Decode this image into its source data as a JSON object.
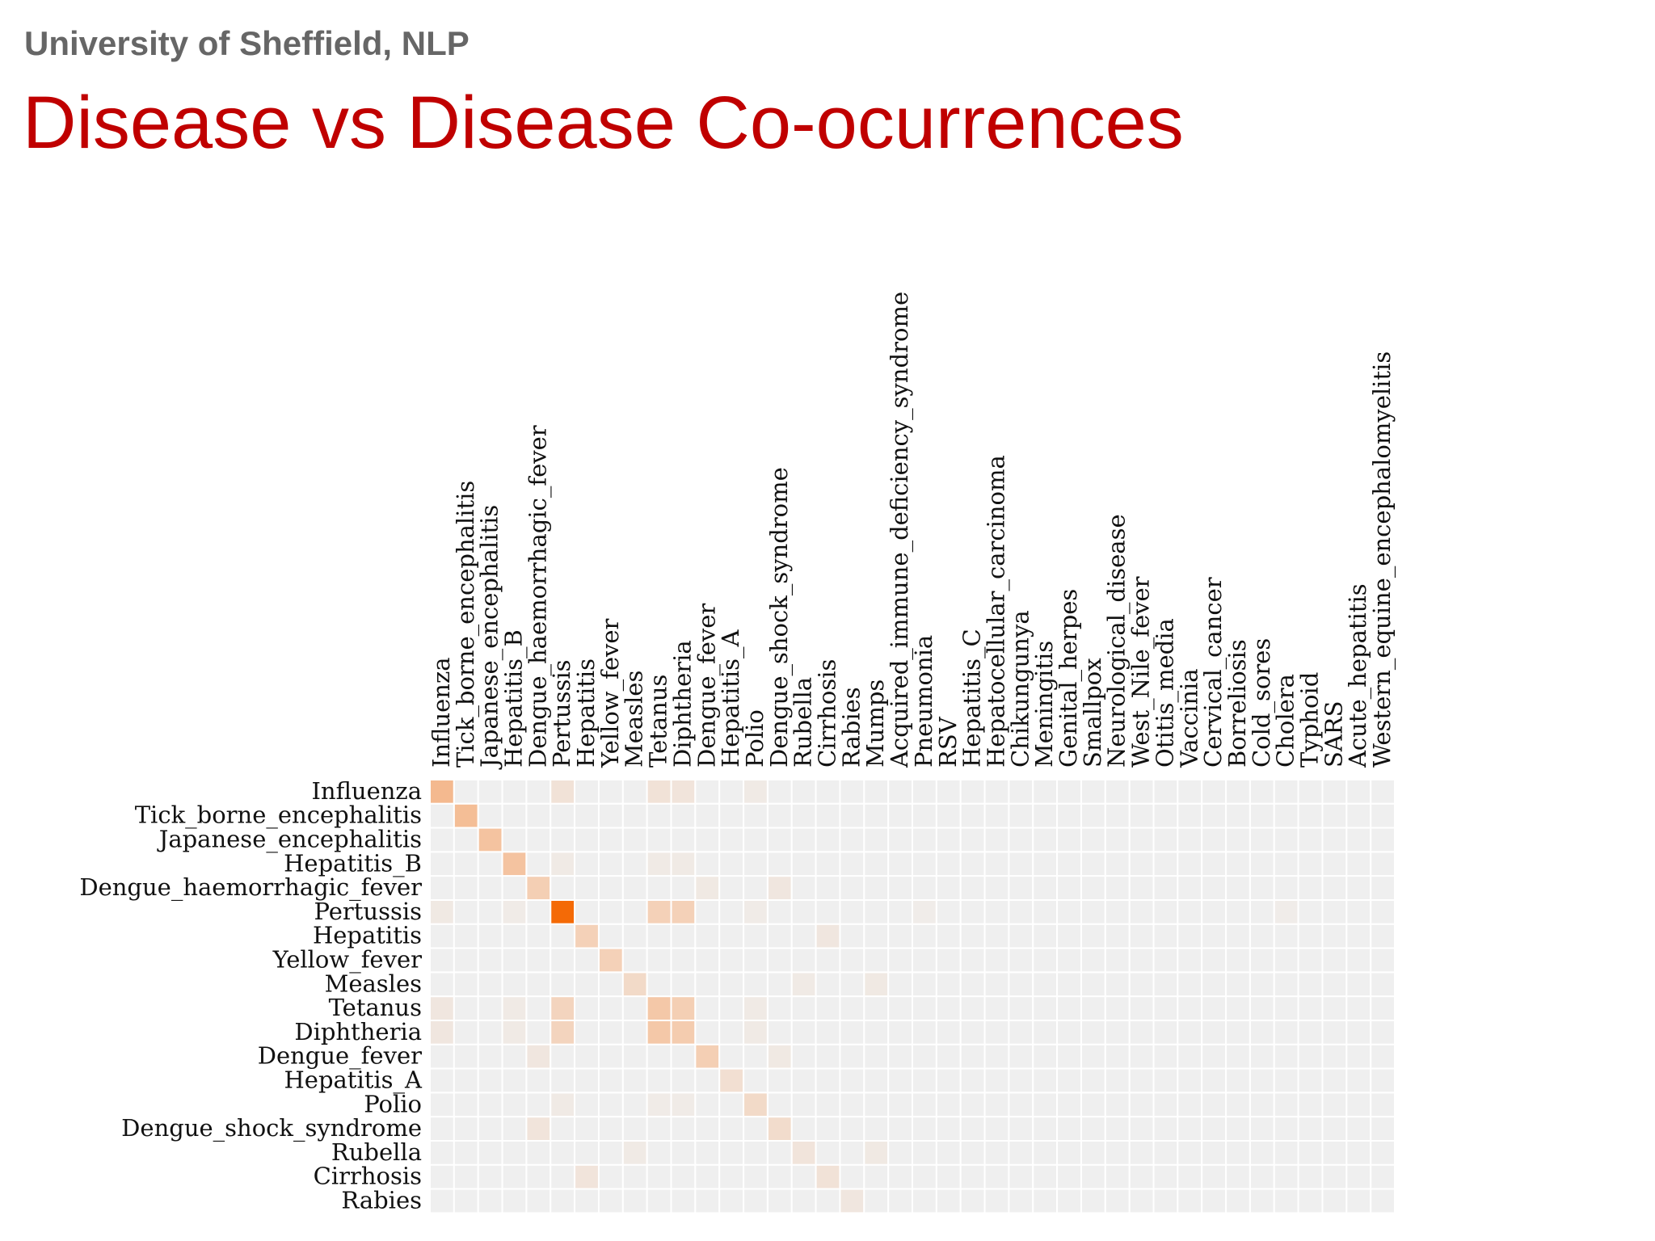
{
  "slide": {
    "organization": "University of Sheffield, NLP",
    "title": "Disease vs Disease Co-ocurrences"
  },
  "chart_data": {
    "type": "heatmap",
    "title": "",
    "xlabel": "",
    "ylabel": "",
    "x_position": "top",
    "colormap": {
      "low": "#efefef",
      "mid": "#f4cfb4",
      "high": "#f46a06"
    },
    "columns": [
      "Influenza",
      "Tick_borne_encephalitis",
      "Japanese_encephalitis",
      "Hepatitis_B",
      "Dengue_haemorrhagic_fever",
      "Pertussis",
      "Hepatitis",
      "Yellow_fever",
      "Measles",
      "Tetanus",
      "Diphtheria",
      "Dengue_fever",
      "Hepatitis_A",
      "Polio",
      "Dengue_shock_syndrome",
      "Rubella",
      "Cirrhosis",
      "Rabies",
      "Mumps",
      "Acquired_immune_deficiency_syndrome",
      "Pneumonia",
      "RSV",
      "Hepatitis_C",
      "Hepatocellular_carcinoma",
      "Chikungunya",
      "Meningitis",
      "Genital_herpes",
      "Smallpox",
      "Neurological_disease",
      "West_Nile_fever",
      "Otitis_media",
      "Vaccinia",
      "Cervical_cancer",
      "Borreliosis",
      "Cold_sores",
      "Cholera",
      "Typhoid",
      "SARS",
      "Acute_hepatitis",
      "Western_equine_encephalomyelitis"
    ],
    "rows": [
      "Influenza",
      "Tick_borne_encephalitis",
      "Japanese_encephalitis",
      "Hepatitis_B",
      "Dengue_haemorrhagic_fever",
      "Pertussis",
      "Hepatitis",
      "Yellow_fever",
      "Measles",
      "Tetanus",
      "Diphtheria",
      "Dengue_fever",
      "Hepatitis_A",
      "Polio",
      "Dengue_shock_syndrome",
      "Rubella",
      "Cirrhosis",
      "Rabies"
    ],
    "cells": [
      [
        0,
        0,
        0.45
      ],
      [
        0,
        5,
        0.12
      ],
      [
        0,
        9,
        0.12
      ],
      [
        0,
        10,
        0.1
      ],
      [
        0,
        13,
        0.05
      ],
      [
        1,
        1,
        0.42
      ],
      [
        2,
        2,
        0.38
      ],
      [
        3,
        3,
        0.38
      ],
      [
        3,
        5,
        0.05
      ],
      [
        3,
        9,
        0.05
      ],
      [
        3,
        10,
        0.05
      ],
      [
        4,
        4,
        0.3
      ],
      [
        4,
        11,
        0.06
      ],
      [
        4,
        14,
        0.08
      ],
      [
        5,
        0,
        0.06
      ],
      [
        5,
        3,
        0.04
      ],
      [
        5,
        5,
        1.0
      ],
      [
        5,
        9,
        0.28
      ],
      [
        5,
        10,
        0.28
      ],
      [
        5,
        13,
        0.04
      ],
      [
        5,
        20,
        0.03
      ],
      [
        5,
        35,
        0.03
      ],
      [
        6,
        6,
        0.28
      ],
      [
        6,
        16,
        0.08
      ],
      [
        7,
        7,
        0.28
      ],
      [
        8,
        8,
        0.2
      ],
      [
        8,
        15,
        0.05
      ],
      [
        8,
        18,
        0.06
      ],
      [
        9,
        0,
        0.08
      ],
      [
        9,
        3,
        0.05
      ],
      [
        9,
        5,
        0.25
      ],
      [
        9,
        9,
        0.35
      ],
      [
        9,
        10,
        0.3
      ],
      [
        9,
        13,
        0.05
      ],
      [
        10,
        0,
        0.08
      ],
      [
        10,
        3,
        0.05
      ],
      [
        10,
        5,
        0.25
      ],
      [
        10,
        9,
        0.35
      ],
      [
        10,
        10,
        0.32
      ],
      [
        10,
        13,
        0.05
      ],
      [
        11,
        4,
        0.08
      ],
      [
        11,
        11,
        0.3
      ],
      [
        11,
        14,
        0.06
      ],
      [
        12,
        12,
        0.15
      ],
      [
        13,
        5,
        0.05
      ],
      [
        13,
        9,
        0.04
      ],
      [
        13,
        10,
        0.04
      ],
      [
        13,
        13,
        0.2
      ],
      [
        14,
        4,
        0.1
      ],
      [
        14,
        14,
        0.18
      ],
      [
        15,
        8,
        0.05
      ],
      [
        15,
        15,
        0.1
      ],
      [
        15,
        18,
        0.06
      ],
      [
        16,
        6,
        0.1
      ],
      [
        16,
        16,
        0.12
      ],
      [
        17,
        17,
        0.08
      ]
    ]
  }
}
